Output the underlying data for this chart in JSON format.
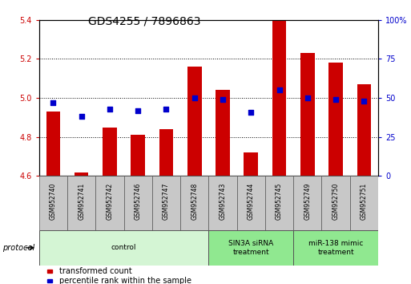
{
  "title": "GDS4255 / 7896863",
  "samples": [
    "GSM952740",
    "GSM952741",
    "GSM952742",
    "GSM952746",
    "GSM952747",
    "GSM952748",
    "GSM952743",
    "GSM952744",
    "GSM952745",
    "GSM952749",
    "GSM952750",
    "GSM952751"
  ],
  "transformed_counts": [
    4.93,
    4.62,
    4.85,
    4.81,
    4.84,
    5.16,
    5.04,
    4.72,
    5.4,
    5.23,
    5.18,
    5.07
  ],
  "percentile_ranks": [
    47,
    38,
    43,
    42,
    43,
    50,
    49,
    41,
    55,
    50,
    49,
    48
  ],
  "ylim_left": [
    4.6,
    5.4
  ],
  "ylim_right": [
    0,
    100
  ],
  "yticks_left": [
    4.6,
    4.8,
    5.0,
    5.2,
    5.4
  ],
  "yticks_right": [
    0,
    25,
    50,
    75,
    100
  ],
  "ytick_labels_right": [
    "0",
    "25",
    "50",
    "75",
    "100%"
  ],
  "bar_color": "#cc0000",
  "dot_color": "#0000cc",
  "bar_baseline": 4.6,
  "group_configs": [
    {
      "label": "control",
      "start": 0,
      "end": 6,
      "color": "#d4f5d4"
    },
    {
      "label": "SIN3A siRNA\ntreatment",
      "start": 6,
      "end": 9,
      "color": "#90e890"
    },
    {
      "label": "miR-138 mimic\ntreatment",
      "start": 9,
      "end": 12,
      "color": "#90e890"
    }
  ],
  "protocol_label": "protocol",
  "legend_red": "transformed count",
  "legend_blue": "percentile rank within the sample",
  "grid_color": "#000000",
  "left_tick_color": "#cc0000",
  "right_tick_color": "#0000cc",
  "title_fontsize": 10,
  "tick_fontsize": 7,
  "bar_width": 0.5,
  "sample_box_color": "#c8c8c8",
  "dot_size": 15
}
